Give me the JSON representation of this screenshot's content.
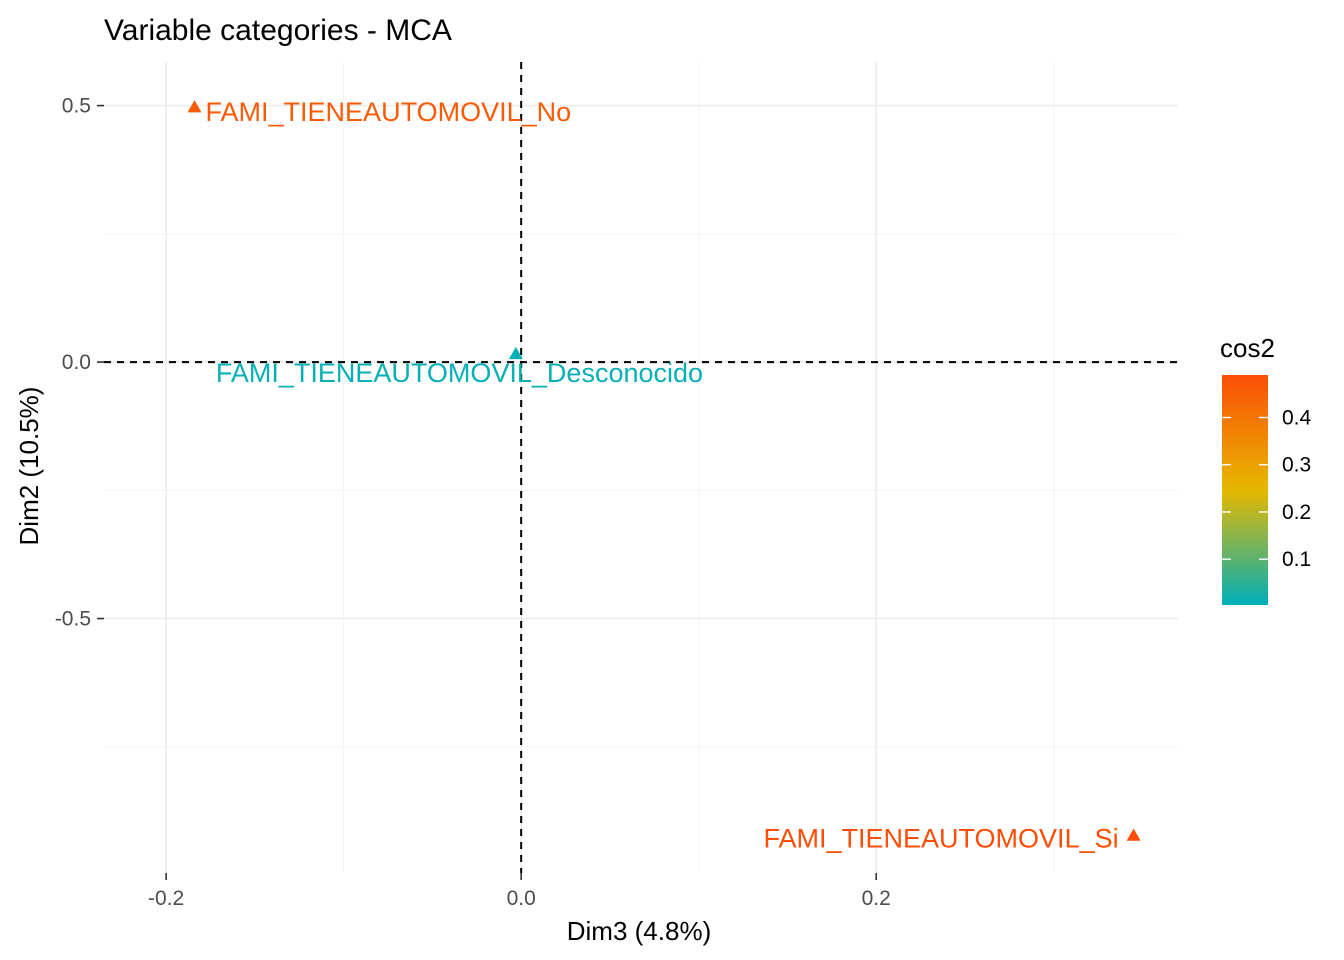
{
  "chart_data": {
    "type": "scatter",
    "title": "Variable categories - MCA",
    "xlabel": "Dim3 (4.8%)",
    "ylabel": "Dim2 (10.5%)",
    "xlim": [
      -0.235,
      0.37
    ],
    "ylim": [
      -0.996,
      0.585
    ],
    "x_ticks": [
      -0.2,
      0.0,
      0.2
    ],
    "x_tick_labels": [
      "-0.2",
      "0.0",
      "0.2"
    ],
    "y_ticks": [
      0.5,
      0.0,
      -0.5
    ],
    "y_tick_labels": [
      "0.5",
      "0.0",
      "-0.5"
    ],
    "grid": true,
    "reference_lines": {
      "x": 0,
      "y": 0,
      "style": "dashed"
    },
    "marker": "triangle",
    "points": [
      {
        "label": "FAMI_TIENEAUTOMOVIL_No",
        "x": -0.184,
        "y": 0.497,
        "cos2": 0.46
      },
      {
        "label": "FAMI_TIENEAUTOMOVIL_Desconocido",
        "x": -0.003,
        "y": 0.016,
        "cos2": 0.01
      },
      {
        "label": "FAMI_TIENEAUTOMOVIL_Si",
        "x": 0.345,
        "y": -0.923,
        "cos2": 0.49
      }
    ],
    "legend": {
      "title": "cos2",
      "placement": "right",
      "range": [
        0.003,
        0.49
      ],
      "ticks": [
        0.1,
        0.2,
        0.3,
        0.4
      ],
      "tick_labels": [
        "0.1",
        "0.2",
        "0.3",
        "0.4"
      ],
      "gradient_colors": [
        "#00AFBB",
        "#E7B800",
        "#FC4E07"
      ]
    }
  }
}
